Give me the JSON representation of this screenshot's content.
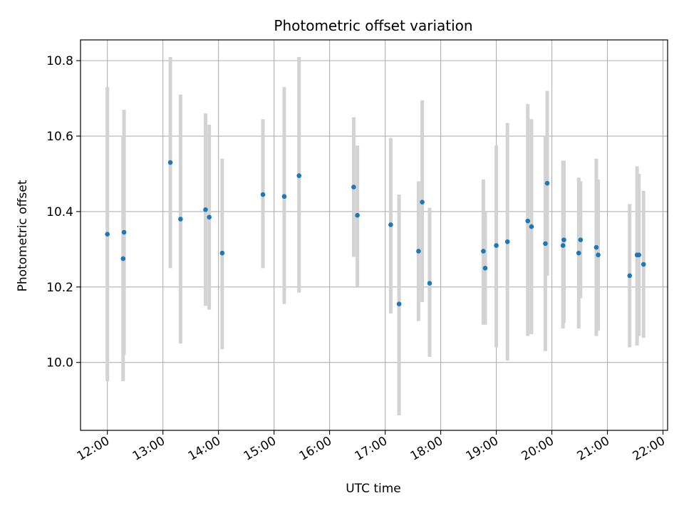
{
  "chart_data": {
    "type": "scatter",
    "title": "Photometric offset variation",
    "xlabel": "UTC time",
    "ylabel": "Photometric offset",
    "x_ticks": [
      "12:00",
      "13:00",
      "14:00",
      "15:00",
      "16:00",
      "17:00",
      "18:00",
      "19:00",
      "20:00",
      "21:00",
      "22:00"
    ],
    "y_ticks": [
      "10.0",
      "10.2",
      "10.4",
      "10.6",
      "10.8"
    ],
    "xlim": [
      "11:31",
      "22:05"
    ],
    "ylim": [
      9.82,
      10.855
    ],
    "grid": true,
    "colors": {
      "point": "#1f77b4",
      "errorbar": "#d3d3d3",
      "grid": "#b0b0b0"
    },
    "series": [
      {
        "points": [
          {
            "x": "12:00",
            "y": 10.34,
            "ylow": 9.95,
            "yhigh": 10.73
          },
          {
            "x": "12:17",
            "y": 10.275,
            "ylow": 9.95,
            "yhigh": 10.6
          },
          {
            "x": "12:18",
            "y": 10.345,
            "ylow": 10.02,
            "yhigh": 10.67
          },
          {
            "x": "13:08",
            "y": 10.53,
            "ylow": 10.25,
            "yhigh": 10.81
          },
          {
            "x": "13:19",
            "y": 10.38,
            "ylow": 10.05,
            "yhigh": 10.71
          },
          {
            "x": "13:46",
            "y": 10.405,
            "ylow": 10.15,
            "yhigh": 10.66
          },
          {
            "x": "13:50",
            "y": 10.385,
            "ylow": 10.14,
            "yhigh": 10.63
          },
          {
            "x": "14:04",
            "y": 10.29,
            "ylow": 10.035,
            "yhigh": 10.54
          },
          {
            "x": "14:48",
            "y": 10.445,
            "ylow": 10.25,
            "yhigh": 10.645
          },
          {
            "x": "15:11",
            "y": 10.44,
            "ylow": 10.155,
            "yhigh": 10.73
          },
          {
            "x": "15:27",
            "y": 10.495,
            "ylow": 10.185,
            "yhigh": 10.81
          },
          {
            "x": "16:26",
            "y": 10.465,
            "ylow": 10.28,
            "yhigh": 10.65
          },
          {
            "x": "16:30",
            "y": 10.39,
            "ylow": 10.2,
            "yhigh": 10.575
          },
          {
            "x": "17:06",
            "y": 10.365,
            "ylow": 10.13,
            "yhigh": 10.595
          },
          {
            "x": "17:15",
            "y": 10.155,
            "ylow": 9.86,
            "yhigh": 10.445
          },
          {
            "x": "17:36",
            "y": 10.295,
            "ylow": 10.11,
            "yhigh": 10.48
          },
          {
            "x": "17:40",
            "y": 10.425,
            "ylow": 10.16,
            "yhigh": 10.695
          },
          {
            "x": "17:48",
            "y": 10.21,
            "ylow": 10.015,
            "yhigh": 10.41
          },
          {
            "x": "18:46",
            "y": 10.295,
            "ylow": 10.1,
            "yhigh": 10.485
          },
          {
            "x": "18:48",
            "y": 10.25,
            "ylow": 10.1,
            "yhigh": 10.4
          },
          {
            "x": "19:00",
            "y": 10.31,
            "ylow": 10.04,
            "yhigh": 10.575
          },
          {
            "x": "19:12",
            "y": 10.32,
            "ylow": 10.005,
            "yhigh": 10.635
          },
          {
            "x": "19:34",
            "y": 10.375,
            "ylow": 10.07,
            "yhigh": 10.685
          },
          {
            "x": "19:38",
            "y": 10.36,
            "ylow": 10.075,
            "yhigh": 10.645
          },
          {
            "x": "19:53",
            "y": 10.315,
            "ylow": 10.03,
            "yhigh": 10.6
          },
          {
            "x": "19:55",
            "y": 10.475,
            "ylow": 10.23,
            "yhigh": 10.72
          },
          {
            "x": "20:12",
            "y": 10.31,
            "ylow": 10.09,
            "yhigh": 10.535
          },
          {
            "x": "20:13",
            "y": 10.325,
            "ylow": 10.105,
            "yhigh": 10.535
          },
          {
            "x": "20:29",
            "y": 10.29,
            "ylow": 10.09,
            "yhigh": 10.49
          },
          {
            "x": "20:31",
            "y": 10.325,
            "ylow": 10.17,
            "yhigh": 10.48
          },
          {
            "x": "20:48",
            "y": 10.305,
            "ylow": 10.07,
            "yhigh": 10.54
          },
          {
            "x": "20:50",
            "y": 10.285,
            "ylow": 10.085,
            "yhigh": 10.485
          },
          {
            "x": "21:24",
            "y": 10.23,
            "ylow": 10.04,
            "yhigh": 10.42
          },
          {
            "x": "21:32",
            "y": 10.285,
            "ylow": 10.045,
            "yhigh": 10.52
          },
          {
            "x": "21:34",
            "y": 10.285,
            "ylow": 10.07,
            "yhigh": 10.5
          },
          {
            "x": "21:39",
            "y": 10.26,
            "ylow": 10.065,
            "yhigh": 10.455
          }
        ]
      }
    ]
  }
}
